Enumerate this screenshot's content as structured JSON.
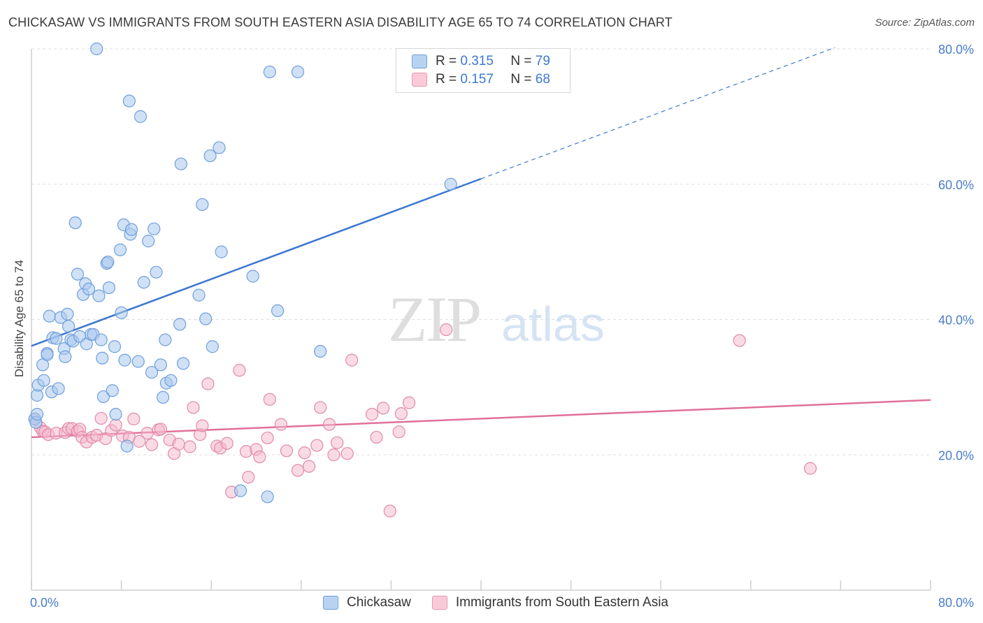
{
  "title": "CHICKASAW VS IMMIGRANTS FROM SOUTH EASTERN ASIA DISABILITY AGE 65 TO 74 CORRELATION CHART",
  "source": "Source: ZipAtlas.com",
  "watermark": {
    "zip": "ZIP",
    "atlas": "atlas"
  },
  "colors": {
    "blue": "#3d78d1",
    "pink": "#e0709a",
    "blue_fill": "#a9c8ee",
    "pink_fill": "#f5b8cb",
    "grid": "#dddddd"
  },
  "legend": {
    "rows": [
      {
        "r_label": "R = ",
        "r_value": "0.315",
        "n_label": "N = ",
        "n_value": "79"
      },
      {
        "r_label": "R = ",
        "r_value": "0.157",
        "n_label": "N = ",
        "n_value": "68"
      }
    ]
  },
  "chart_data": {
    "type": "scatter",
    "title": "CHICKASAW VS IMMIGRANTS FROM SOUTH EASTERN ASIA DISABILITY AGE 65 TO 74 CORRELATION CHART",
    "xlabel": "",
    "ylabel": "Disability Age 65 to 74",
    "xlim": [
      0,
      80
    ],
    "ylim": [
      0,
      80
    ],
    "x_tick_labels": [
      "0.0%",
      "80.0%"
    ],
    "y_tick_labels": [
      "20.0%",
      "40.0%",
      "60.0%",
      "80.0%"
    ],
    "y_ticks": [
      20,
      40,
      60,
      80
    ],
    "series": [
      {
        "name": "Chickasaw",
        "r": 0.315,
        "n": 79,
        "trend": {
          "x0": 0,
          "y0": 36.1,
          "x1": 40,
          "y1": 60.8,
          "dash_x1": 71.5,
          "dash_y1": 80.2
        },
        "points": [
          [
            0.3,
            25.3
          ],
          [
            0.4,
            24.8
          ],
          [
            0.5,
            28.8
          ],
          [
            0.6,
            30.3
          ],
          [
            1.0,
            33.3
          ],
          [
            1.1,
            31.0
          ],
          [
            1.4,
            35.0
          ],
          [
            1.4,
            34.8
          ],
          [
            1.6,
            40.5
          ],
          [
            1.8,
            29.3
          ],
          [
            1.9,
            37.3
          ],
          [
            2.2,
            37.2
          ],
          [
            2.4,
            29.8
          ],
          [
            2.6,
            40.3
          ],
          [
            2.9,
            35.7
          ],
          [
            3.0,
            34.5
          ],
          [
            3.2,
            40.8
          ],
          [
            3.3,
            39.0
          ],
          [
            3.5,
            37.0
          ],
          [
            3.7,
            36.8
          ],
          [
            3.9,
            54.3
          ],
          [
            4.1,
            46.7
          ],
          [
            4.3,
            37.5
          ],
          [
            4.6,
            43.7
          ],
          [
            4.8,
            45.3
          ],
          [
            4.9,
            36.4
          ],
          [
            5.1,
            44.5
          ],
          [
            5.3,
            37.8
          ],
          [
            5.5,
            37.8
          ],
          [
            6.0,
            43.5
          ],
          [
            6.2,
            37.0
          ],
          [
            6.3,
            34.3
          ],
          [
            6.4,
            28.6
          ],
          [
            6.7,
            48.3
          ],
          [
            6.8,
            48.5
          ],
          [
            6.9,
            44.7
          ],
          [
            7.2,
            29.5
          ],
          [
            7.4,
            36.0
          ],
          [
            7.5,
            26.0
          ],
          [
            7.9,
            50.3
          ],
          [
            8.0,
            41.0
          ],
          [
            8.2,
            54.0
          ],
          [
            8.3,
            34.0
          ],
          [
            8.5,
            21.3
          ],
          [
            8.7,
            72.3
          ],
          [
            8.8,
            52.6
          ],
          [
            8.9,
            53.3
          ],
          [
            9.5,
            33.8
          ],
          [
            9.7,
            70.0
          ],
          [
            10.0,
            45.5
          ],
          [
            10.4,
            51.6
          ],
          [
            10.7,
            32.2
          ],
          [
            10.9,
            53.4
          ],
          [
            11.1,
            47.0
          ],
          [
            11.5,
            33.3
          ],
          [
            11.7,
            28.5
          ],
          [
            11.9,
            37.0
          ],
          [
            12.0,
            30.6
          ],
          [
            12.4,
            31.0
          ],
          [
            13.2,
            39.3
          ],
          [
            13.3,
            63.0
          ],
          [
            13.5,
            33.5
          ],
          [
            14.9,
            43.6
          ],
          [
            15.2,
            57.0
          ],
          [
            15.5,
            40.1
          ],
          [
            15.9,
            64.2
          ],
          [
            16.1,
            36.0
          ],
          [
            16.7,
            65.4
          ],
          [
            16.9,
            50.0
          ],
          [
            18.6,
            14.7
          ],
          [
            19.7,
            46.4
          ],
          [
            21.0,
            13.8
          ],
          [
            21.2,
            76.6
          ],
          [
            21.9,
            41.3
          ],
          [
            23.7,
            76.6
          ],
          [
            25.7,
            35.3
          ],
          [
            37.3,
            60.0
          ],
          [
            5.8,
            80.0
          ],
          [
            0.5,
            26.0
          ]
        ]
      },
      {
        "name": "Immigrants from South Eastern Asia",
        "r": 0.157,
        "n": 68,
        "trend": {
          "x0": 0,
          "y0": 22.6,
          "x1": 80,
          "y1": 28.1
        },
        "points": [
          [
            0.3,
            25.3
          ],
          [
            0.8,
            24.0
          ],
          [
            1.0,
            23.5
          ],
          [
            1.2,
            23.4
          ],
          [
            1.5,
            23.0
          ],
          [
            2.2,
            23.2
          ],
          [
            3.0,
            23.3
          ],
          [
            3.3,
            23.9
          ],
          [
            3.6,
            23.9
          ],
          [
            4.1,
            23.5
          ],
          [
            4.3,
            23.8
          ],
          [
            4.5,
            22.6
          ],
          [
            4.9,
            21.9
          ],
          [
            5.4,
            22.6
          ],
          [
            5.8,
            22.9
          ],
          [
            6.2,
            25.4
          ],
          [
            6.6,
            22.4
          ],
          [
            7.1,
            23.6
          ],
          [
            7.5,
            24.4
          ],
          [
            8.1,
            22.8
          ],
          [
            8.7,
            22.6
          ],
          [
            9.1,
            25.3
          ],
          [
            9.6,
            22.0
          ],
          [
            10.3,
            23.2
          ],
          [
            10.7,
            21.5
          ],
          [
            11.3,
            23.7
          ],
          [
            11.5,
            23.8
          ],
          [
            12.3,
            22.2
          ],
          [
            12.7,
            20.2
          ],
          [
            13.1,
            21.6
          ],
          [
            14.1,
            21.2
          ],
          [
            14.4,
            27.0
          ],
          [
            15.0,
            23.0
          ],
          [
            15.2,
            24.3
          ],
          [
            15.7,
            30.5
          ],
          [
            16.5,
            21.3
          ],
          [
            16.8,
            21.0
          ],
          [
            17.4,
            21.7
          ],
          [
            17.8,
            14.5
          ],
          [
            18.5,
            32.5
          ],
          [
            19.1,
            20.5
          ],
          [
            19.3,
            16.7
          ],
          [
            20.0,
            20.8
          ],
          [
            20.3,
            19.7
          ],
          [
            21.0,
            22.5
          ],
          [
            21.2,
            28.2
          ],
          [
            22.2,
            24.5
          ],
          [
            22.7,
            20.6
          ],
          [
            23.7,
            17.7
          ],
          [
            24.3,
            20.3
          ],
          [
            24.7,
            18.3
          ],
          [
            25.4,
            21.4
          ],
          [
            25.7,
            27.0
          ],
          [
            26.5,
            24.5
          ],
          [
            26.9,
            20.0
          ],
          [
            27.2,
            21.8
          ],
          [
            28.1,
            20.2
          ],
          [
            28.5,
            34.0
          ],
          [
            30.3,
            26.0
          ],
          [
            30.7,
            22.6
          ],
          [
            31.3,
            26.9
          ],
          [
            31.9,
            11.7
          ],
          [
            32.7,
            23.4
          ],
          [
            32.9,
            26.1
          ],
          [
            33.6,
            27.7
          ],
          [
            36.9,
            38.5
          ],
          [
            63.0,
            36.9
          ],
          [
            69.3,
            18.0
          ]
        ]
      }
    ]
  },
  "bottom_legend": {
    "items": [
      "Chickasaw",
      "Immigrants from South Eastern Asia"
    ]
  }
}
